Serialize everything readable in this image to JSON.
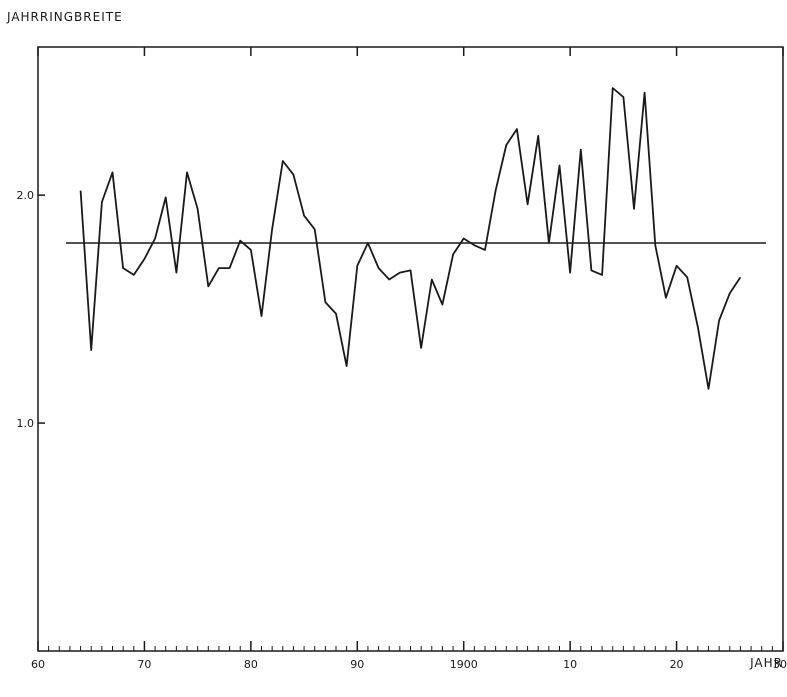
{
  "chart_data": {
    "type": "line",
    "ylabel": "JAHRRINGBREITE",
    "xlabel": "JAHR",
    "xlim": [
      1860,
      1930
    ],
    "ylim": [
      0.0,
      2.65
    ],
    "grid": false,
    "legend": "none",
    "x_ticks": [
      1860,
      1870,
      1880,
      1890,
      1900,
      1910,
      1920,
      1930
    ],
    "x_tick_labels": [
      "60",
      "70",
      "80",
      "90",
      "1900",
      "10",
      "20",
      "30"
    ],
    "y_ticks": [
      1.0,
      2.0
    ],
    "y_tick_labels": [
      "1.0",
      "2.0"
    ],
    "reference_line": 1.79,
    "series": [
      {
        "x": [
          1864,
          1865,
          1866,
          1867,
          1868,
          1869,
          1870,
          1871,
          1872,
          1873,
          1874,
          1875,
          1876,
          1877,
          1878,
          1879,
          1880,
          1881,
          1882,
          1883,
          1884,
          1885,
          1886,
          1887,
          1888,
          1889,
          1890,
          1891,
          1892,
          1893,
          1894,
          1895,
          1896,
          1897,
          1898,
          1899,
          1900,
          1901,
          1902,
          1903,
          1904,
          1905,
          1906,
          1907,
          1908,
          1909,
          1910,
          1911,
          1912,
          1913,
          1914,
          1915,
          1916,
          1917,
          1918,
          1919,
          1920,
          1921,
          1922,
          1923,
          1924,
          1925,
          1926
        ],
        "values": [
          2.02,
          1.32,
          1.97,
          2.1,
          1.68,
          1.65,
          1.72,
          1.81,
          1.99,
          1.66,
          2.1,
          1.94,
          1.6,
          1.68,
          1.68,
          1.8,
          1.76,
          1.47,
          1.85,
          2.15,
          2.09,
          1.91,
          1.85,
          1.53,
          1.48,
          1.25,
          1.69,
          1.79,
          1.68,
          1.63,
          1.66,
          1.67,
          1.33,
          1.63,
          1.52,
          1.74,
          1.81,
          1.78,
          1.76,
          2.02,
          2.22,
          2.29,
          1.96,
          2.26,
          1.79,
          2.13,
          1.66,
          2.2,
          1.67,
          1.65,
          2.47,
          2.43,
          1.94,
          2.45,
          1.78,
          1.55,
          1.69,
          1.64,
          1.42,
          1.15,
          1.45,
          1.57,
          1.64
        ]
      }
    ]
  },
  "colors": {
    "ink": "#1a1a1a",
    "paper": "#ffffff"
  }
}
